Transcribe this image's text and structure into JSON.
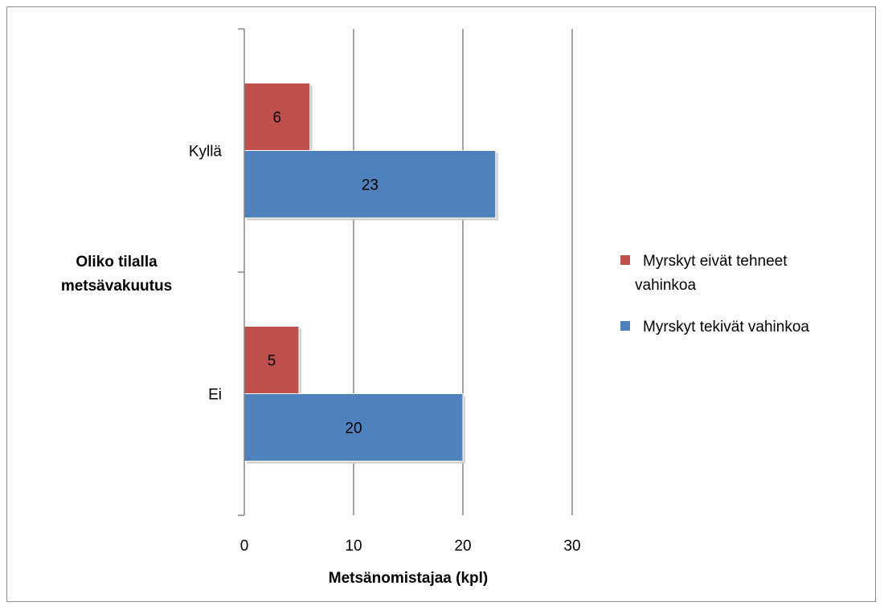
{
  "chart_data": {
    "type": "bar",
    "orientation": "horizontal",
    "categories": [
      "Kyllä",
      "Ei"
    ],
    "series": [
      {
        "name": "Myrskyt eivät tehneet vahinkoa",
        "values": [
          6,
          5
        ],
        "color": "#c0504d"
      },
      {
        "name": "Myrskyt tekivät vahinkoa",
        "values": [
          23,
          20
        ],
        "color": "#4f81bd"
      }
    ],
    "xlabel": "Metsänomistajaa (kpl)",
    "ylabel": [
      "Oliko tilalla",
      "metsävakuutus"
    ],
    "xlim": [
      0,
      30
    ],
    "xticks": [
      0,
      10,
      20,
      30
    ],
    "grid": "vertical",
    "legend_position": "right",
    "legend_lines": [
      [
        "Myrskyt eivät tehneet",
        "vahinkoa"
      ],
      [
        "Myrskyt tekivät vahinkoa"
      ]
    ]
  }
}
